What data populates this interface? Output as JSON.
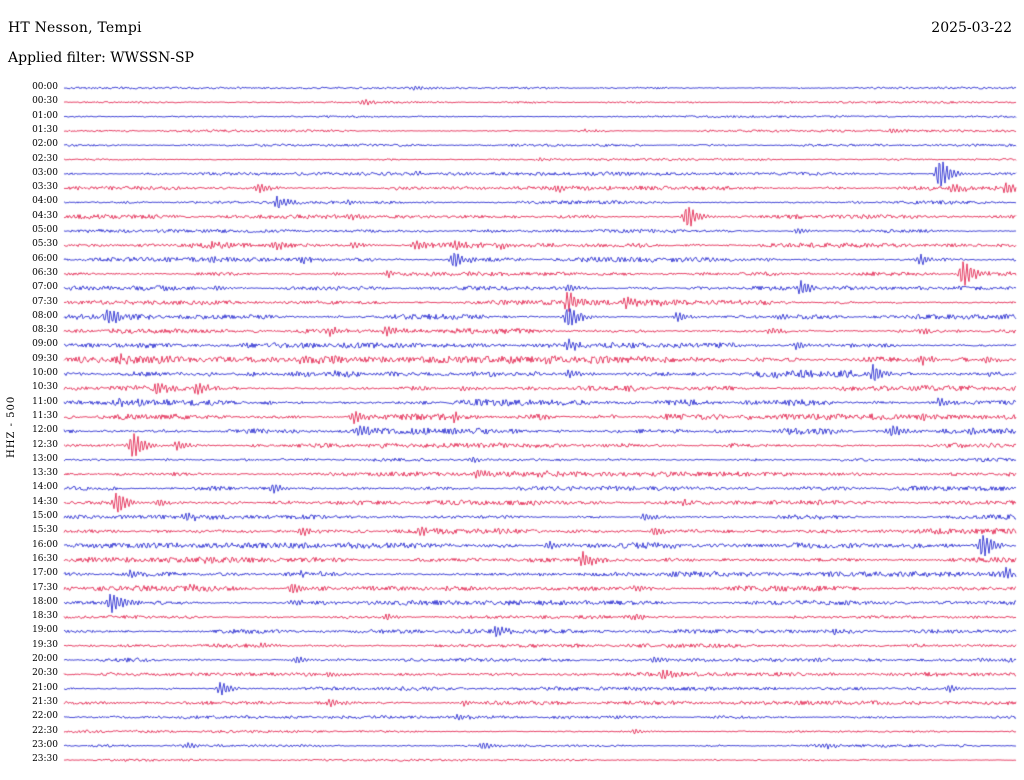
{
  "header": {
    "station_title": "HT Nesson, Tempi",
    "date": "2025-03-22",
    "filter_label": "Applied filter: WWSSN-SP"
  },
  "axis": {
    "channel_label": "HHZ - 500"
  },
  "chart_data": {
    "type": "line",
    "title": "HT Nesson, Tempi",
    "subtitle": "Applied filter: WWSSN-SP",
    "date": "2025-03-22",
    "ylabel": "HHZ - 500",
    "legend_position": "none",
    "grid": false,
    "row_interval_minutes": 30,
    "trace_colors": {
      "blue": "#1316cc",
      "red": "#e01240"
    },
    "rows": [
      {
        "label": "00:00",
        "color": "blue",
        "noise": 0.6,
        "events": [
          {
            "x": 0.37,
            "amp": 2.5
          }
        ]
      },
      {
        "label": "00:30",
        "color": "red",
        "noise": 0.6,
        "events": [
          {
            "x": 0.315,
            "amp": 3
          }
        ]
      },
      {
        "label": "01:00",
        "color": "blue",
        "noise": 0.6,
        "events": []
      },
      {
        "label": "01:30",
        "color": "red",
        "noise": 0.7,
        "events": [
          {
            "x": 0.55,
            "amp": 2
          },
          {
            "x": 0.87,
            "amp": 2
          }
        ]
      },
      {
        "label": "02:00",
        "color": "blue",
        "noise": 0.7,
        "events": []
      },
      {
        "label": "02:30",
        "color": "red",
        "noise": 0.7,
        "events": [
          {
            "x": 0.5,
            "amp": 1.5
          }
        ]
      },
      {
        "label": "03:00",
        "color": "blue",
        "noise": 1.0,
        "events": [
          {
            "x": 0.92,
            "amp": 16
          },
          {
            "x": 0.37,
            "amp": 3
          }
        ]
      },
      {
        "label": "03:30",
        "color": "red",
        "noise": 1.2,
        "events": [
          {
            "x": 0.205,
            "amp": 5
          },
          {
            "x": 0.52,
            "amp": 3
          },
          {
            "x": 0.935,
            "amp": 5
          },
          {
            "x": 0.99,
            "amp": 6
          }
        ]
      },
      {
        "label": "04:00",
        "color": "blue",
        "noise": 1.0,
        "events": [
          {
            "x": 0.225,
            "amp": 6
          },
          {
            "x": 0.3,
            "amp": 2.5
          }
        ]
      },
      {
        "label": "04:30",
        "color": "red",
        "noise": 1.2,
        "events": [
          {
            "x": 0.655,
            "amp": 12
          },
          {
            "x": 0.3,
            "amp": 3
          }
        ]
      },
      {
        "label": "05:00",
        "color": "blue",
        "noise": 1.0,
        "events": [
          {
            "x": 0.77,
            "amp": 3
          },
          {
            "x": 0.62,
            "amp": 2.5
          }
        ]
      },
      {
        "label": "05:30",
        "color": "red",
        "noise": 1.4,
        "events": [
          {
            "x": 0.155,
            "amp": 4
          },
          {
            "x": 0.225,
            "amp": 3
          },
          {
            "x": 0.305,
            "amp": 4
          },
          {
            "x": 0.37,
            "amp": 4
          },
          {
            "x": 0.41,
            "amp": 3
          },
          {
            "x": 0.46,
            "amp": 3
          }
        ]
      },
      {
        "label": "06:00",
        "color": "blue",
        "noise": 1.4,
        "events": [
          {
            "x": 0.41,
            "amp": 9
          },
          {
            "x": 0.155,
            "amp": 4
          },
          {
            "x": 0.25,
            "amp": 3
          },
          {
            "x": 0.9,
            "amp": 5
          }
        ]
      },
      {
        "label": "06:30",
        "color": "red",
        "noise": 1.3,
        "events": [
          {
            "x": 0.945,
            "amp": 14
          },
          {
            "x": 0.34,
            "amp": 3
          }
        ]
      },
      {
        "label": "07:00",
        "color": "blue",
        "noise": 1.4,
        "events": [
          {
            "x": 0.775,
            "amp": 7
          },
          {
            "x": 0.53,
            "amp": 4
          },
          {
            "x": 0.16,
            "amp": 3
          }
        ]
      },
      {
        "label": "07:30",
        "color": "red",
        "noise": 1.4,
        "events": [
          {
            "x": 0.53,
            "amp": 10
          },
          {
            "x": 0.59,
            "amp": 6
          },
          {
            "x": 0.63,
            "amp": 4
          }
        ]
      },
      {
        "label": "08:00",
        "color": "blue",
        "noise": 1.5,
        "events": [
          {
            "x": 0.047,
            "amp": 8
          },
          {
            "x": 0.53,
            "amp": 12
          },
          {
            "x": 0.645,
            "amp": 5
          },
          {
            "x": 0.75,
            "amp": 3
          }
        ]
      },
      {
        "label": "08:30",
        "color": "red",
        "noise": 1.5,
        "events": [
          {
            "x": 0.28,
            "amp": 5
          },
          {
            "x": 0.34,
            "amp": 5
          },
          {
            "x": 0.74,
            "amp": 3
          },
          {
            "x": 0.9,
            "amp": 3
          }
        ]
      },
      {
        "label": "09:00",
        "color": "blue",
        "noise": 1.5,
        "events": [
          {
            "x": 0.53,
            "amp": 6
          },
          {
            "x": 0.77,
            "amp": 4
          }
        ]
      },
      {
        "label": "09:30",
        "color": "red",
        "noise": 2.2,
        "events": [
          {
            "x": 0.06,
            "amp": 3
          },
          {
            "x": 0.25,
            "amp": 4
          },
          {
            "x": 0.5,
            "amp": 3
          },
          {
            "x": 0.9,
            "amp": 5
          },
          {
            "x": 0.97,
            "amp": 4
          }
        ]
      },
      {
        "label": "10:00",
        "color": "blue",
        "noise": 2.4,
        "events": [
          {
            "x": 0.85,
            "amp": 9
          },
          {
            "x": 0.53,
            "amp": 4
          }
        ]
      },
      {
        "label": "10:30",
        "color": "red",
        "noise": 1.8,
        "events": [
          {
            "x": 0.1,
            "amp": 6
          },
          {
            "x": 0.14,
            "amp": 7
          },
          {
            "x": 0.42,
            "amp": 3
          }
        ]
      },
      {
        "label": "11:00",
        "color": "blue",
        "noise": 1.8,
        "events": [
          {
            "x": 0.92,
            "amp": 5
          },
          {
            "x": 0.06,
            "amp": 3
          }
        ]
      },
      {
        "label": "11:30",
        "color": "red",
        "noise": 1.8,
        "events": [
          {
            "x": 0.305,
            "amp": 7
          },
          {
            "x": 0.41,
            "amp": 4
          },
          {
            "x": 0.9,
            "amp": 4
          }
        ]
      },
      {
        "label": "12:00",
        "color": "blue",
        "noise": 1.8,
        "events": [
          {
            "x": 0.31,
            "amp": 5
          },
          {
            "x": 0.87,
            "amp": 6
          },
          {
            "x": 0.95,
            "amp": 3
          }
        ]
      },
      {
        "label": "12:30",
        "color": "red",
        "noise": 1.4,
        "events": [
          {
            "x": 0.073,
            "amp": 14
          },
          {
            "x": 0.12,
            "amp": 5
          }
        ]
      },
      {
        "label": "13:00",
        "color": "blue",
        "noise": 1.2,
        "events": [
          {
            "x": 0.43,
            "amp": 3
          }
        ]
      },
      {
        "label": "13:30",
        "color": "red",
        "noise": 1.4,
        "events": [
          {
            "x": 0.435,
            "amp": 5
          },
          {
            "x": 0.5,
            "amp": 3
          }
        ]
      },
      {
        "label": "14:00",
        "color": "blue",
        "noise": 1.4,
        "events": [
          {
            "x": 0.22,
            "amp": 5
          }
        ]
      },
      {
        "label": "14:30",
        "color": "red",
        "noise": 1.4,
        "events": [
          {
            "x": 0.056,
            "amp": 12
          },
          {
            "x": 0.1,
            "amp": 4
          },
          {
            "x": 0.65,
            "amp": 3
          }
        ]
      },
      {
        "label": "15:00",
        "color": "blue",
        "noise": 1.3,
        "events": [
          {
            "x": 0.13,
            "amp": 4
          },
          {
            "x": 0.61,
            "amp": 4
          }
        ]
      },
      {
        "label": "15:30",
        "color": "red",
        "noise": 1.6,
        "events": [
          {
            "x": 0.25,
            "amp": 5
          },
          {
            "x": 0.375,
            "amp": 5
          },
          {
            "x": 0.62,
            "amp": 4
          }
        ]
      },
      {
        "label": "16:00",
        "color": "blue",
        "noise": 1.6,
        "events": [
          {
            "x": 0.965,
            "amp": 13
          },
          {
            "x": 0.51,
            "amp": 4
          },
          {
            "x": 0.62,
            "amp": 3
          }
        ]
      },
      {
        "label": "16:30",
        "color": "red",
        "noise": 1.5,
        "events": [
          {
            "x": 0.545,
            "amp": 8
          },
          {
            "x": 0.15,
            "amp": 3
          }
        ]
      },
      {
        "label": "17:00",
        "color": "blue",
        "noise": 1.5,
        "events": [
          {
            "x": 0.07,
            "amp": 5
          },
          {
            "x": 0.99,
            "amp": 7
          },
          {
            "x": 0.25,
            "amp": 3
          }
        ]
      },
      {
        "label": "17:30",
        "color": "red",
        "noise": 1.6,
        "events": [
          {
            "x": 0.24,
            "amp": 6
          },
          {
            "x": 0.6,
            "amp": 3
          },
          {
            "x": 0.13,
            "amp": 3
          }
        ]
      },
      {
        "label": "18:00",
        "color": "blue",
        "noise": 1.4,
        "events": [
          {
            "x": 0.05,
            "amp": 11
          },
          {
            "x": 0.24,
            "amp": 3
          }
        ]
      },
      {
        "label": "18:30",
        "color": "red",
        "noise": 1.2,
        "events": [
          {
            "x": 0.34,
            "amp": 3
          },
          {
            "x": 0.6,
            "amp": 2.5
          }
        ]
      },
      {
        "label": "19:00",
        "color": "blue",
        "noise": 1.2,
        "events": [
          {
            "x": 0.455,
            "amp": 6
          },
          {
            "x": 0.81,
            "amp": 3
          }
        ]
      },
      {
        "label": "19:30",
        "color": "red",
        "noise": 1.1,
        "events": [
          {
            "x": 0.21,
            "amp": 3
          }
        ]
      },
      {
        "label": "20:00",
        "color": "blue",
        "noise": 1.2,
        "events": [
          {
            "x": 0.245,
            "amp": 4
          },
          {
            "x": 0.62,
            "amp": 3
          }
        ]
      },
      {
        "label": "20:30",
        "color": "red",
        "noise": 1.2,
        "events": [
          {
            "x": 0.63,
            "amp": 5
          },
          {
            "x": 0.28,
            "amp": 3
          }
        ]
      },
      {
        "label": "21:00",
        "color": "blue",
        "noise": 1.2,
        "events": [
          {
            "x": 0.165,
            "amp": 7
          },
          {
            "x": 0.93,
            "amp": 4
          }
        ]
      },
      {
        "label": "21:30",
        "color": "red",
        "noise": 1.1,
        "events": [
          {
            "x": 0.28,
            "amp": 4
          },
          {
            "x": 0.42,
            "amp": 3
          }
        ]
      },
      {
        "label": "22:00",
        "color": "blue",
        "noise": 0.9,
        "events": [
          {
            "x": 0.415,
            "amp": 3
          }
        ]
      },
      {
        "label": "22:30",
        "color": "red",
        "noise": 0.8,
        "events": [
          {
            "x": 0.6,
            "amp": 2.5
          }
        ]
      },
      {
        "label": "23:00",
        "color": "blue",
        "noise": 0.9,
        "events": [
          {
            "x": 0.13,
            "amp": 3
          },
          {
            "x": 0.44,
            "amp": 4
          },
          {
            "x": 0.8,
            "amp": 3
          }
        ]
      },
      {
        "label": "23:30",
        "color": "red",
        "noise": 0.7,
        "events": []
      }
    ]
  }
}
